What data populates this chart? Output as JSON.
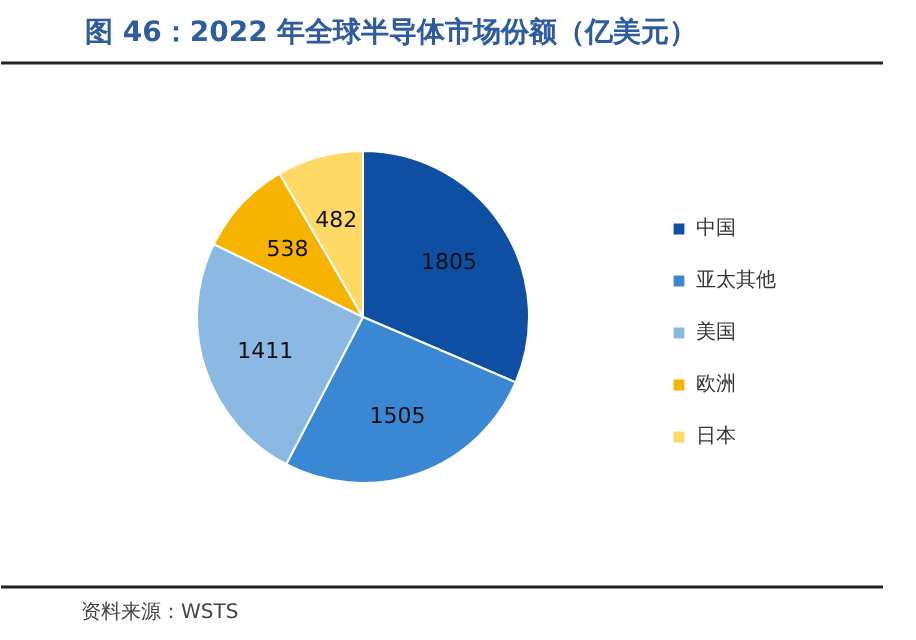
{
  "chart_data": {
    "type": "pie",
    "title": "图 46：2022 年全球半导体市场份额（亿美元）",
    "categories": [
      "中国",
      "亚太其他",
      "美国",
      "欧洲",
      "日本"
    ],
    "values": [
      1805,
      1505,
      1411,
      538,
      482
    ],
    "colors": [
      "#0e4fa3",
      "#3a87d4",
      "#8cb9e3",
      "#f6b300",
      "#ffd966"
    ],
    "data_labels": true,
    "legend": "right",
    "annotations": [
      "资料来源：WSTS"
    ]
  }
}
